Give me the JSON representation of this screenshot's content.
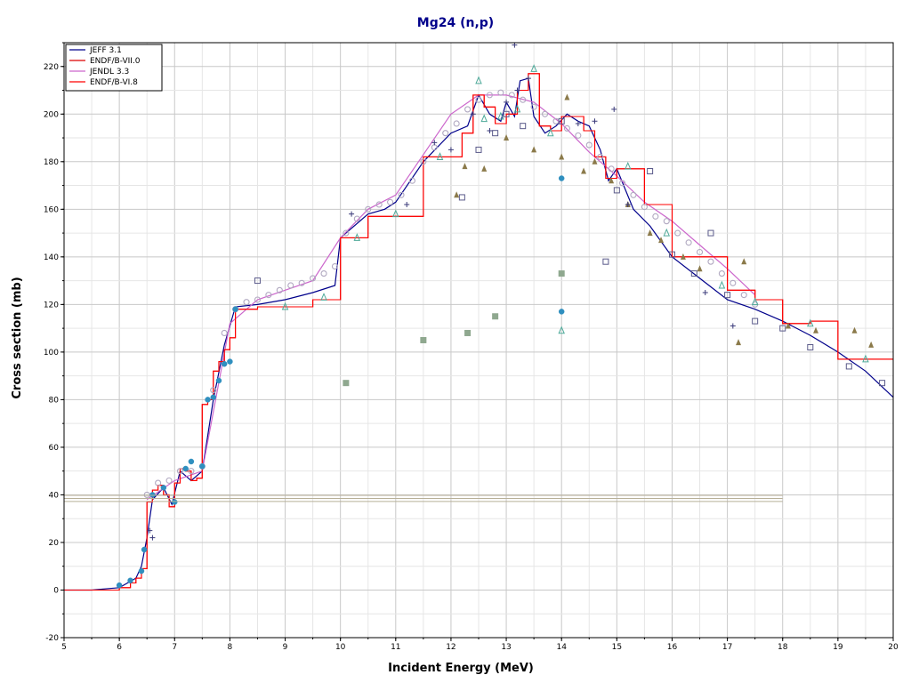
{
  "chart_data": {
    "type": "line",
    "title": "Mg24 (n,p)",
    "xlabel": "Incident Energy (MeV)",
    "ylabel": "Cross section (mb)",
    "xlim": [
      5,
      20
    ],
    "ylim": [
      -20,
      230
    ],
    "xticks": [
      5,
      6,
      7,
      8,
      9,
      10,
      11,
      12,
      13,
      14,
      15,
      16,
      17,
      18,
      19,
      20
    ],
    "yticks": [
      -20,
      0,
      20,
      40,
      60,
      80,
      100,
      120,
      140,
      160,
      180,
      200,
      220
    ],
    "grid": true,
    "legend_position": "top-left",
    "colors": {
      "background": "#ffffff",
      "grid": "#d3d3d3",
      "title": "#00008b",
      "jeff": "#00008b",
      "endf7": "#dd0000",
      "jendl": "#cc66cc",
      "endf6": "#ff0000",
      "exp_light": "#b0a8c0",
      "exp_blue": "#2f8fbf",
      "exp_green": "#8fa88f",
      "exp_olive": "#8b7a4a",
      "exp_navy": "#1a1a6e"
    },
    "series": [
      {
        "name": "JEFF 3.1",
        "style": "line",
        "color": "#00008b",
        "x": [
          5.0,
          5.5,
          6.0,
          6.3,
          6.4,
          6.5,
          6.6,
          6.8,
          6.95,
          7.1,
          7.3,
          7.5,
          7.7,
          7.9,
          8.1,
          8.5,
          9.0,
          9.5,
          9.9,
          10.0,
          10.2,
          10.5,
          10.8,
          11.0,
          11.5,
          12.0,
          12.3,
          12.5,
          12.7,
          12.9,
          13.0,
          13.15,
          13.25,
          13.4,
          13.5,
          13.7,
          13.9,
          14.1,
          14.3,
          14.5,
          14.7,
          14.85,
          15.0,
          15.3,
          15.6,
          16.0,
          16.5,
          17.0,
          17.5,
          18.0,
          18.5,
          19.0,
          19.5,
          20.0
        ],
        "y": [
          0,
          0,
          1,
          5,
          10,
          22,
          38,
          43,
          36,
          50,
          46,
          50,
          80,
          103,
          119,
          120,
          122,
          125,
          128,
          148,
          152,
          158,
          160,
          163,
          180,
          192,
          195,
          208,
          200,
          197,
          205,
          199,
          214,
          215,
          199,
          192,
          195,
          200,
          197,
          195,
          185,
          172,
          177,
          160,
          153,
          140,
          131,
          122,
          118,
          113,
          107,
          100,
          92,
          81
        ]
      },
      {
        "name": "ENDF/B-VII.0",
        "style": "step",
        "color": "#dd0000",
        "x": [
          5.0,
          5.5,
          6.0,
          6.2,
          6.3,
          6.4,
          6.5,
          6.6,
          6.7,
          6.8,
          6.9,
          7.0,
          7.1,
          7.2,
          7.3,
          7.4,
          7.5,
          7.6,
          7.7,
          7.8,
          7.9,
          8.0,
          8.1,
          8.5,
          9.0,
          9.5,
          10.0,
          10.5,
          11.0,
          11.5,
          12.0,
          12.2,
          12.4,
          12.6,
          12.8,
          13.0,
          13.2,
          13.4,
          13.6,
          13.8,
          14.0,
          14.2,
          14.4,
          14.6,
          14.8,
          15.0,
          15.5,
          16.0,
          16.5,
          17.0,
          17.5,
          18.0,
          18.5,
          19.0,
          19.5,
          20.0
        ],
        "y": [
          0,
          0,
          1,
          3,
          5,
          9,
          37,
          42,
          44,
          40,
          35,
          45,
          51,
          50,
          46,
          47,
          78,
          80,
          92,
          96,
          101,
          106,
          118,
          119,
          119,
          122,
          148,
          157,
          157,
          182,
          182,
          192,
          208,
          203,
          196,
          200,
          210,
          217,
          195,
          193,
          199,
          199,
          193,
          182,
          173,
          177,
          162,
          140,
          140,
          126,
          122,
          112,
          113,
          97,
          97,
          97
        ]
      },
      {
        "name": "JENDL 3.3",
        "style": "line",
        "color": "#cc66cc",
        "x": [
          6.5,
          7.0,
          7.5,
          8.0,
          8.5,
          9.0,
          9.5,
          10.0,
          10.5,
          11.0,
          11.5,
          12.0,
          12.5,
          13.0,
          13.5,
          14.0,
          14.5,
          15.0,
          15.5,
          16.0,
          16.5,
          17.0,
          17.5
        ],
        "y": [
          38,
          46,
          50,
          112,
          122,
          126,
          130,
          148,
          160,
          166,
          183,
          200,
          208,
          208,
          205,
          196,
          184,
          174,
          163,
          155,
          145,
          135,
          124
        ]
      },
      {
        "name": "ENDF/B-VI.8",
        "style": "step",
        "color": "#ff0000",
        "x": [
          5.0,
          5.5,
          6.0,
          6.2,
          6.3,
          6.4,
          6.5,
          6.6,
          6.7,
          6.8,
          6.9,
          7.0,
          7.1,
          7.2,
          7.3,
          7.4,
          7.5,
          7.6,
          7.7,
          7.8,
          7.9,
          8.0,
          8.1,
          8.5,
          9.0,
          9.5,
          10.0,
          10.5,
          11.0,
          11.5,
          12.0,
          12.2,
          12.4,
          12.6,
          12.8,
          13.0,
          13.2,
          13.4,
          13.6,
          13.8,
          14.0,
          14.2,
          14.4,
          14.6,
          14.8,
          15.0,
          15.5,
          16.0,
          16.5,
          17.0,
          17.5,
          18.0,
          18.5,
          19.0,
          19.5,
          20.0
        ],
        "y": [
          0,
          0,
          1,
          3,
          5,
          9,
          37,
          42,
          44,
          40,
          35,
          45,
          51,
          50,
          46,
          47,
          78,
          80,
          92,
          96,
          101,
          106,
          118,
          119,
          119,
          122,
          148,
          157,
          157,
          182,
          182,
          192,
          208,
          203,
          196,
          200,
          210,
          217,
          195,
          193,
          199,
          199,
          193,
          182,
          173,
          177,
          162,
          140,
          140,
          126,
          122,
          112,
          113,
          97,
          97,
          97
        ]
      },
      {
        "name": "",
        "style": "marker",
        "marker": "circle-open",
        "color": "#b0a8c0",
        "x": [
          6.5,
          6.7,
          6.9,
          7.1,
          7.3,
          7.5,
          7.7,
          7.9,
          8.1,
          8.3,
          8.5,
          8.7,
          8.9,
          9.1,
          9.3,
          9.5,
          9.7,
          9.9,
          10.1,
          10.3,
          10.5,
          10.7,
          10.9,
          11.1,
          11.3,
          11.5,
          11.7,
          11.9,
          12.1,
          12.3,
          12.5,
          12.7,
          12.9,
          13.1,
          13.3,
          13.5,
          13.7,
          13.9,
          14.1,
          14.3,
          14.5,
          14.7,
          14.9,
          15.1,
          15.3,
          15.5,
          15.7,
          15.9,
          16.1,
          16.3,
          16.5,
          16.7,
          16.9,
          17.1,
          17.3,
          17.5
        ],
        "y": [
          40,
          45,
          46,
          50,
          50,
          52,
          84,
          108,
          118,
          121,
          122,
          124,
          126,
          128,
          129,
          131,
          133,
          136,
          150,
          156,
          160,
          162,
          163,
          166,
          172,
          180,
          186,
          192,
          196,
          202,
          206,
          208,
          209,
          208,
          206,
          203,
          200,
          197,
          194,
          191,
          187,
          182,
          177,
          171,
          166,
          161,
          157,
          155,
          150,
          146,
          142,
          138,
          133,
          129,
          124,
          120
        ]
      },
      {
        "name": "",
        "style": "marker",
        "marker": "square-open",
        "color": "#5a5a8a",
        "x": [
          8.5,
          12.2,
          12.5,
          12.8,
          13.0,
          13.3,
          14.0,
          14.8,
          15.0,
          15.6,
          16.0,
          16.4,
          16.7,
          17.0,
          17.5,
          18.0,
          18.5,
          19.2,
          19.8
        ],
        "y": [
          130,
          165,
          185,
          192,
          200,
          195,
          197,
          138,
          168,
          176,
          141,
          133,
          150,
          124,
          113,
          110,
          102,
          94,
          87
        ]
      },
      {
        "name": "",
        "style": "marker",
        "marker": "circle-filled",
        "color": "#2f8fbf",
        "x": [
          6.0,
          6.2,
          6.4,
          6.45,
          6.6,
          6.8,
          7.0,
          7.2,
          7.3,
          7.5,
          7.6,
          7.7,
          7.8,
          7.9,
          8.0,
          8.1,
          14.0,
          14.0
        ],
        "y": [
          2,
          4,
          8,
          17,
          40,
          43,
          37,
          51,
          54,
          52,
          80,
          81,
          88,
          95,
          96,
          118,
          117,
          173
        ]
      },
      {
        "name": "",
        "style": "marker",
        "marker": "square-filled",
        "color": "#8fa88f",
        "x": [
          10.1,
          11.5,
          12.3,
          12.8,
          14.0
        ],
        "y": [
          87,
          105,
          108,
          115,
          133
        ]
      },
      {
        "name": "",
        "style": "marker",
        "marker": "triangle-filled",
        "color": "#8b7a4a",
        "x": [
          12.1,
          12.25,
          12.6,
          13.0,
          13.5,
          14.0,
          14.1,
          14.4,
          14.6,
          14.9,
          15.2,
          15.6,
          15.8,
          16.2,
          16.5,
          17.2,
          17.3,
          18.1,
          18.6,
          19.3,
          19.6
        ],
        "y": [
          166,
          178,
          177,
          190,
          185,
          182,
          207,
          176,
          180,
          172,
          162,
          150,
          147,
          140,
          135,
          104,
          138,
          111,
          109,
          109,
          103
        ]
      },
      {
        "name": "",
        "style": "marker",
        "marker": "triangle-open",
        "color": "#4faa9a",
        "x": [
          9.0,
          9.7,
          10.3,
          11.0,
          11.8,
          12.5,
          12.6,
          12.9,
          13.2,
          13.5,
          13.8,
          14.0,
          15.2,
          15.9,
          16.9,
          17.5,
          18.5,
          19.5
        ],
        "y": [
          119,
          123,
          148,
          158,
          182,
          214,
          198,
          199,
          202,
          219,
          192,
          109,
          178,
          150,
          128,
          121,
          112,
          97
        ]
      },
      {
        "name": "",
        "style": "marker",
        "marker": "cross",
        "color": "#3a3a7a",
        "x": [
          6.55,
          6.6,
          10.2,
          11.2,
          11.7,
          12.0,
          12.4,
          12.7,
          13.0,
          13.2,
          13.4,
          14.3,
          14.6,
          14.95,
          15.2,
          16.6,
          17.1,
          13.15
        ],
        "y": [
          25,
          22,
          158,
          162,
          188,
          185,
          200,
          193,
          205,
          210,
          215,
          196,
          197,
          202,
          162,
          125,
          111,
          229
        ]
      },
      {
        "name": "",
        "style": "hline",
        "color": "#b8b098",
        "x": [
          5.0,
          18.0
        ],
        "y": [
          38.5,
          38.5
        ]
      },
      {
        "name": "",
        "style": "hline",
        "color": "#b8b098",
        "x": [
          5.0,
          18.0
        ],
        "y": [
          39.8,
          39.8
        ]
      },
      {
        "name": "",
        "style": "hline",
        "color": "#b8b098",
        "x": [
          5.0,
          18.0
        ],
        "y": [
          37.2,
          37.2
        ]
      }
    ]
  }
}
